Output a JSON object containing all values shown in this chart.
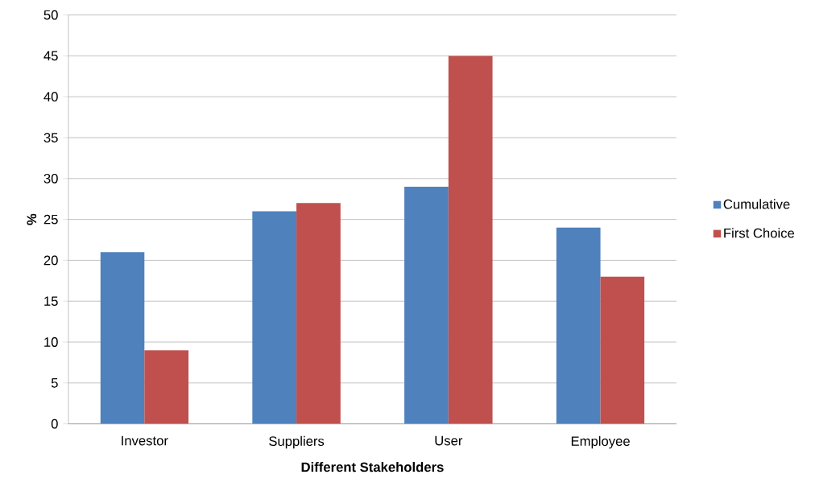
{
  "chart_data": {
    "type": "bar",
    "xlabel": "Different Stakeholders",
    "ylabel": "%",
    "categories": [
      "Investor",
      "Suppliers",
      "User",
      "Employee"
    ],
    "series": [
      {
        "name": "Cumulative",
        "color": "#4f81bd",
        "values": [
          21,
          26,
          29,
          24
        ]
      },
      {
        "name": "First Choice",
        "color": "#c0504d",
        "values": [
          9,
          27,
          45,
          18
        ]
      }
    ],
    "ylim": [
      0,
      50
    ],
    "yticks": [
      0,
      5,
      10,
      15,
      20,
      25,
      30,
      35,
      40,
      45,
      50
    ],
    "grid": "y",
    "legend": "right"
  }
}
